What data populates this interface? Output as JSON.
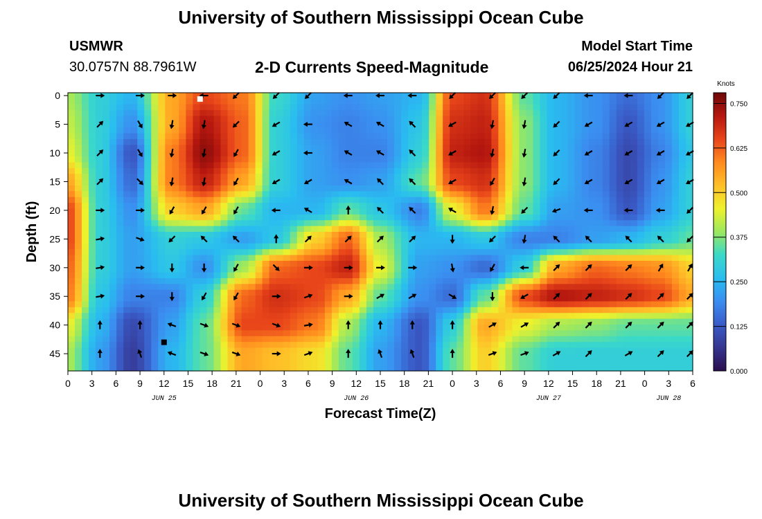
{
  "header": {
    "title": "University of Southern Mississippi Ocean Cube",
    "station_name": "USMWR",
    "coords": "30.0757N  88.7961W",
    "plot_title": "2-D Currents Speed-Magnitude",
    "model_label": "Model Start Time",
    "model_time": "06/25/2024 Hour 21"
  },
  "footer": {
    "title": "University of Southern Mississippi Ocean Cube"
  },
  "colors": {
    "scale": [
      "#2a0e4f",
      "#35358f",
      "#3a5cc8",
      "#3b8df0",
      "#29bdf0",
      "#3ad9c8",
      "#9be85f",
      "#eef22c",
      "#ffbf28",
      "#ff8a1e",
      "#e8451a",
      "#b5170f",
      "#6e0808"
    ]
  },
  "chart_data": {
    "type": "heatmap",
    "title": "2-D Currents Speed-Magnitude",
    "xlabel": "Forecast Time(Z)",
    "ylabel": "Depth (ft)",
    "x_ticks": [
      "0",
      "3",
      "6",
      "9",
      "12",
      "15",
      "18",
      "21",
      "0",
      "3",
      "6",
      "9",
      "12",
      "15",
      "18",
      "21",
      "0",
      "3",
      "6",
      "9",
      "12",
      "15",
      "18",
      "21",
      "0",
      "3",
      "6"
    ],
    "x_range_hours": [
      0,
      78
    ],
    "date_labels": [
      {
        "label": "JUN 25",
        "hour": 12
      },
      {
        "label": "JUN 26",
        "hour": 36
      },
      {
        "label": "JUN 27",
        "hour": 60
      },
      {
        "label": "JUN 28",
        "hour": 75
      }
    ],
    "y_ticks": [
      "0",
      "5",
      "10",
      "15",
      "20",
      "25",
      "30",
      "35",
      "40",
      "45"
    ],
    "y_range_ft": [
      -0.5,
      48
    ],
    "colorbar": {
      "unit": "Knots",
      "ticks": [
        "0.000",
        "0.125",
        "0.250",
        "0.375",
        "0.500",
        "0.625",
        "0.750"
      ],
      "range": [
        0,
        0.78
      ]
    },
    "depths_ft": [
      0,
      5,
      10,
      15,
      20,
      25,
      30,
      35,
      40,
      45
    ],
    "times_h": [
      0,
      4,
      8,
      13,
      17,
      22,
      26,
      31,
      35,
      39,
      44,
      48,
      52,
      57,
      61,
      66,
      70,
      74,
      78
    ],
    "speed_knots": [
      [
        0.4,
        0.3,
        0.25,
        0.55,
        0.65,
        0.6,
        0.32,
        0.22,
        0.2,
        0.22,
        0.25,
        0.65,
        0.68,
        0.35,
        0.25,
        0.2,
        0.15,
        0.2,
        0.3
      ],
      [
        0.42,
        0.3,
        0.2,
        0.55,
        0.72,
        0.62,
        0.3,
        0.2,
        0.18,
        0.2,
        0.28,
        0.68,
        0.7,
        0.38,
        0.25,
        0.2,
        0.12,
        0.2,
        0.3
      ],
      [
        0.45,
        0.3,
        0.12,
        0.6,
        0.75,
        0.62,
        0.3,
        0.22,
        0.18,
        0.18,
        0.3,
        0.7,
        0.72,
        0.38,
        0.25,
        0.18,
        0.1,
        0.18,
        0.28
      ],
      [
        0.55,
        0.3,
        0.15,
        0.6,
        0.7,
        0.55,
        0.3,
        0.22,
        0.2,
        0.22,
        0.35,
        0.65,
        0.68,
        0.38,
        0.25,
        0.18,
        0.1,
        0.2,
        0.3
      ],
      [
        0.65,
        0.3,
        0.2,
        0.5,
        0.55,
        0.35,
        0.25,
        0.25,
        0.35,
        0.28,
        0.18,
        0.45,
        0.6,
        0.35,
        0.22,
        0.2,
        0.12,
        0.22,
        0.3
      ],
      [
        0.65,
        0.3,
        0.22,
        0.3,
        0.28,
        0.22,
        0.28,
        0.5,
        0.62,
        0.4,
        0.25,
        0.25,
        0.28,
        0.18,
        0.18,
        0.22,
        0.25,
        0.3,
        0.35
      ],
      [
        0.62,
        0.3,
        0.22,
        0.28,
        0.2,
        0.4,
        0.62,
        0.65,
        0.7,
        0.45,
        0.22,
        0.2,
        0.15,
        0.3,
        0.55,
        0.62,
        0.6,
        0.58,
        0.5
      ],
      [
        0.6,
        0.28,
        0.18,
        0.18,
        0.3,
        0.62,
        0.68,
        0.65,
        0.55,
        0.35,
        0.2,
        0.15,
        0.35,
        0.65,
        0.72,
        0.7,
        0.68,
        0.65,
        0.55
      ],
      [
        0.45,
        0.25,
        0.1,
        0.22,
        0.35,
        0.65,
        0.65,
        0.6,
        0.4,
        0.25,
        0.12,
        0.3,
        0.55,
        0.45,
        0.4,
        0.38,
        0.35,
        0.35,
        0.35
      ],
      [
        0.4,
        0.22,
        0.08,
        0.25,
        0.35,
        0.55,
        0.52,
        0.48,
        0.35,
        0.22,
        0.12,
        0.35,
        0.5,
        0.35,
        0.3,
        0.3,
        0.3,
        0.3,
        0.3
      ]
    ],
    "arrow_times_h": [
      4,
      9,
      13,
      17,
      21,
      26,
      30,
      35,
      39,
      43,
      48,
      53,
      57,
      61,
      65,
      70,
      74,
      78
    ],
    "arrow_dirs_deg": [
      [
        0,
        0,
        0,
        180,
        135,
        135,
        135,
        180,
        180,
        180,
        135,
        135,
        135,
        135,
        180,
        180,
        135,
        135
      ],
      [
        -45,
        60,
        100,
        100,
        135,
        150,
        180,
        210,
        210,
        225,
        150,
        100,
        100,
        135,
        150,
        150,
        150,
        150
      ],
      [
        -45,
        60,
        100,
        100,
        120,
        150,
        180,
        210,
        210,
        225,
        150,
        100,
        100,
        135,
        150,
        150,
        150,
        150
      ],
      [
        -45,
        45,
        100,
        100,
        120,
        150,
        150,
        210,
        225,
        225,
        150,
        120,
        100,
        135,
        150,
        150,
        150,
        150
      ],
      [
        0,
        0,
        120,
        120,
        120,
        180,
        210,
        270,
        225,
        225,
        210,
        100,
        135,
        160,
        180,
        180,
        180,
        135
      ],
      [
        -10,
        20,
        135,
        225,
        225,
        270,
        315,
        315,
        315,
        315,
        90,
        135,
        100,
        225,
        225,
        225,
        225,
        135
      ],
      [
        -10,
        0,
        90,
        90,
        120,
        45,
        0,
        0,
        0,
        0,
        80,
        120,
        180,
        -45,
        -45,
        -45,
        -60,
        -60
      ],
      [
        -10,
        0,
        90,
        120,
        120,
        0,
        -20,
        0,
        -30,
        -30,
        30,
        90,
        150,
        -45,
        -45,
        -45,
        -45,
        -45
      ],
      [
        270,
        270,
        200,
        20,
        20,
        20,
        -10,
        270,
        270,
        270,
        270,
        -30,
        -30,
        -45,
        -45,
        -45,
        -45,
        -45
      ],
      [
        270,
        250,
        200,
        20,
        20,
        0,
        -20,
        270,
        250,
        250,
        270,
        -20,
        -20,
        -30,
        -45,
        -30,
        -45,
        -45
      ]
    ],
    "markers": [
      {
        "type": "white-square",
        "hour": 16.5,
        "depth": 0.6
      },
      {
        "type": "black-square",
        "hour": 12,
        "depth": 43
      }
    ]
  }
}
